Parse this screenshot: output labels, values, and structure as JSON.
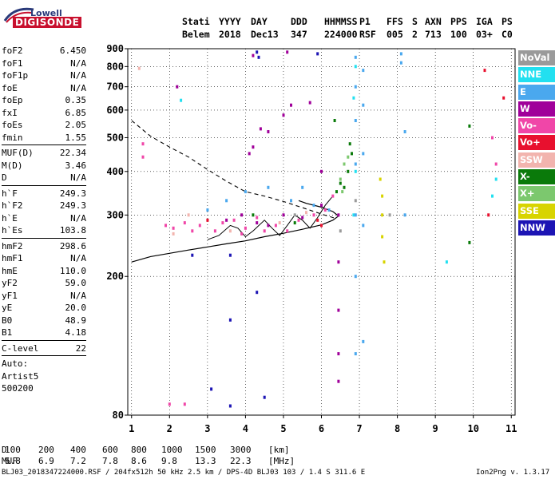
{
  "logo": {
    "line1": "Lowell",
    "line2": "DIGISONDE"
  },
  "header": {
    "row1": [
      "Stati",
      "YYYY",
      "DAY",
      "DDD",
      "HHMMSS",
      "P1",
      "FFS",
      "S",
      "AXN",
      "PPS",
      "IGA",
      "PS"
    ],
    "row2": [
      "Belem",
      "2018",
      "Dec13",
      "347",
      "224000",
      "RSF",
      "005",
      "2",
      "713",
      "100",
      "03+",
      "C0"
    ]
  },
  "params": [
    {
      "label": "foF2",
      "value": "6.450"
    },
    {
      "label": "foF1",
      "value": "N/A"
    },
    {
      "label": "foF1p",
      "value": "N/A"
    },
    {
      "label": "foE",
      "value": "N/A"
    },
    {
      "label": "foEp",
      "value": "0.35"
    },
    {
      "label": "fxI",
      "value": "6.85"
    },
    {
      "label": "foEs",
      "value": "2.05"
    },
    {
      "label": "fmin",
      "value": "1.55"
    },
    {
      "sep": true
    },
    {
      "label": "MUF(D)",
      "value": "22.34"
    },
    {
      "label": "M(D)",
      "value": "3.46"
    },
    {
      "label": "D",
      "value": "N/A"
    },
    {
      "sep": true
    },
    {
      "label": "h`F",
      "value": "249.3"
    },
    {
      "label": "h`F2",
      "value": "249.3"
    },
    {
      "label": "h`E",
      "value": "N/A"
    },
    {
      "label": "h`Es",
      "value": "103.8"
    },
    {
      "sep": true
    },
    {
      "label": "hmF2",
      "value": "298.6"
    },
    {
      "label": "hmF1",
      "value": "N/A"
    },
    {
      "label": "hmE",
      "value": "110.0"
    },
    {
      "label": "yF2",
      "value": "59.0"
    },
    {
      "label": "yF1",
      "value": "N/A"
    },
    {
      "label": "yE",
      "value": "20.0"
    },
    {
      "label": "B0",
      "value": "48.9"
    },
    {
      "label": "B1",
      "value": "4.18"
    },
    {
      "sep": true
    },
    {
      "label": "C-level",
      "value": "22"
    },
    {
      "sep": true
    }
  ],
  "auto": {
    "line1": "Auto:",
    "line2": "Artist5",
    "line3": "500200"
  },
  "legend": [
    {
      "label": "NoVal",
      "color": "#9a9a9a"
    },
    {
      "label": "NNE",
      "color": "#22e0f0"
    },
    {
      "label": "E",
      "color": "#4aa8ee"
    },
    {
      "label": "W",
      "color": "#a0009a"
    },
    {
      "label": "Vo-",
      "color": "#f046a8"
    },
    {
      "label": "Vo+",
      "color": "#e8102e"
    },
    {
      "label": "SSW",
      "color": "#f2b4ae"
    },
    {
      "label": "X-",
      "color": "#0a7a0a"
    },
    {
      "label": "X+",
      "color": "#7cc86e"
    },
    {
      "label": "SSE",
      "color": "#d8d400"
    },
    {
      "label": "NNW",
      "color": "#1c14b4"
    }
  ],
  "distance_table": {
    "d_label": "D",
    "d_values": [
      "100",
      "200",
      "400",
      "600",
      "800",
      "1000",
      "1500",
      "3000"
    ],
    "d_unit": "[km]",
    "muf_label": "MUF",
    "muf_values": [
      "6.8",
      "6.9",
      "7.2",
      "7.8",
      "8.6",
      "9.8",
      "13.3",
      "22.3"
    ],
    "muf_unit": "[MHz]"
  },
  "footer": {
    "left": "BLJ03_2018347224000.RSF / 204fx512h 50 kHz 2.5 km / DPS-4D BLJ03 103 / 1.4 S 311.6 E",
    "right": "Ion2Png v. 1.3.17"
  },
  "chart_data": {
    "type": "scatter",
    "x_ticks": [
      1,
      2,
      3,
      4,
      5,
      6,
      7,
      8,
      9,
      10,
      11
    ],
    "y_ticks": [
      80,
      200,
      300,
      400,
      500,
      600,
      700,
      800,
      900
    ],
    "xlim": [
      0.9,
      11.1
    ],
    "y_scale": "log",
    "ylim": [
      80,
      900
    ],
    "grid": "dotted",
    "legend_position": "right",
    "profile_curve": [
      [
        1.0,
        220
      ],
      [
        1.5,
        228
      ],
      [
        2.0,
        233
      ],
      [
        2.5,
        238
      ],
      [
        3.0,
        243
      ],
      [
        3.5,
        248
      ],
      [
        4.0,
        253
      ],
      [
        4.5,
        260
      ],
      [
        5.0,
        266
      ],
      [
        5.5,
        273
      ],
      [
        6.0,
        281
      ],
      [
        6.3,
        290
      ],
      [
        6.45,
        298
      ],
      [
        6.3,
        307
      ],
      [
        6.0,
        316
      ],
      [
        5.6,
        324
      ],
      [
        5.4,
        330
      ]
    ],
    "dashed_curve": [
      [
        1.0,
        560
      ],
      [
        1.5,
        505
      ],
      [
        2.0,
        470
      ],
      [
        2.5,
        440
      ],
      [
        3.0,
        405
      ],
      [
        3.5,
        375
      ],
      [
        4.0,
        350
      ],
      [
        4.5,
        340
      ],
      [
        5.0,
        328
      ],
      [
        5.5,
        315
      ],
      [
        6.0,
        302
      ],
      [
        6.35,
        294
      ]
    ],
    "trace_curve": [
      [
        3.0,
        255
      ],
      [
        3.3,
        262
      ],
      [
        3.6,
        280
      ],
      [
        3.8,
        275
      ],
      [
        4.0,
        260
      ],
      [
        4.2,
        270
      ],
      [
        4.5,
        290
      ],
      [
        4.7,
        275
      ],
      [
        4.9,
        262
      ],
      [
        5.1,
        280
      ],
      [
        5.3,
        300
      ],
      [
        5.5,
        290
      ],
      [
        5.7,
        275
      ],
      [
        5.9,
        295
      ],
      [
        6.1,
        320
      ],
      [
        6.3,
        340
      ]
    ],
    "series": [
      {
        "name": "NNE",
        "color": "#22e0f0",
        "points": [
          [
            6.85,
            300
          ],
          [
            6.9,
            400
          ],
          [
            6.85,
            650
          ],
          [
            6.9,
            800
          ],
          [
            10.5,
            340
          ],
          [
            10.6,
            380
          ],
          [
            2.3,
            640
          ],
          [
            9.3,
            220
          ]
        ]
      },
      {
        "name": "E",
        "color": "#4aa8ee",
        "points": [
          [
            4.0,
            350
          ],
          [
            4.6,
            360
          ],
          [
            5.2,
            330
          ],
          [
            5.8,
            320
          ],
          [
            6.2,
            310
          ],
          [
            6.9,
            120
          ],
          [
            6.9,
            200
          ],
          [
            6.9,
            300
          ],
          [
            6.9,
            420
          ],
          [
            6.9,
            560
          ],
          [
            6.9,
            700
          ],
          [
            6.9,
            850
          ],
          [
            7.1,
            130
          ],
          [
            7.1,
            280
          ],
          [
            7.1,
            450
          ],
          [
            7.1,
            620
          ],
          [
            7.1,
            780
          ],
          [
            8.1,
            820
          ],
          [
            8.1,
            870
          ],
          [
            8.2,
            520
          ],
          [
            8.2,
            300
          ],
          [
            3.0,
            310
          ],
          [
            3.5,
            330
          ],
          [
            5.5,
            360
          ]
        ]
      },
      {
        "name": "W",
        "color": "#a0009a",
        "points": [
          [
            3.5,
            290
          ],
          [
            3.9,
            300
          ],
          [
            4.3,
            285
          ],
          [
            4.6,
            280
          ],
          [
            5.0,
            300
          ],
          [
            5.5,
            295
          ],
          [
            6.0,
            320
          ],
          [
            6.45,
            300
          ],
          [
            6.45,
            220
          ],
          [
            6.45,
            160
          ],
          [
            6.45,
            120
          ],
          [
            6.45,
            100
          ],
          [
            4.1,
            450
          ],
          [
            4.2,
            470
          ],
          [
            4.4,
            530
          ],
          [
            4.6,
            520
          ],
          [
            5.0,
            580
          ],
          [
            5.2,
            620
          ],
          [
            5.7,
            630
          ],
          [
            6.0,
            400
          ],
          [
            2.2,
            700
          ],
          [
            4.2,
            860
          ],
          [
            5.1,
            880
          ]
        ]
      },
      {
        "name": "Vo-",
        "color": "#f046a8",
        "points": [
          [
            1.9,
            280
          ],
          [
            2.1,
            275
          ],
          [
            2.4,
            285
          ],
          [
            2.6,
            270
          ],
          [
            2.8,
            280
          ],
          [
            3.2,
            270
          ],
          [
            3.4,
            285
          ],
          [
            3.7,
            290
          ],
          [
            4.0,
            275
          ],
          [
            4.3,
            295
          ],
          [
            4.8,
            280
          ],
          [
            5.1,
            270
          ],
          [
            5.4,
            290
          ],
          [
            5.8,
            300
          ],
          [
            6.1,
            310
          ],
          [
            6.3,
            340
          ],
          [
            1.3,
            480
          ],
          [
            1.3,
            440
          ],
          [
            10.5,
            500
          ],
          [
            10.6,
            420
          ],
          [
            3.9,
            265
          ],
          [
            4.5,
            270
          ],
          [
            2.0,
            86
          ],
          [
            2.4,
            86
          ]
        ]
      },
      {
        "name": "Vo+",
        "color": "#e8102e",
        "points": [
          [
            10.3,
            780
          ],
          [
            10.8,
            650
          ],
          [
            10.4,
            300
          ],
          [
            3.0,
            290
          ],
          [
            5.9,
            290
          ],
          [
            6.0,
            280
          ]
        ]
      },
      {
        "name": "SSW",
        "color": "#f2b4ae",
        "points": [
          [
            2.1,
            265
          ],
          [
            3.6,
            270
          ],
          [
            4.9,
            285
          ],
          [
            5.6,
            305
          ],
          [
            1.2,
            790
          ],
          [
            2.5,
            300
          ]
        ]
      },
      {
        "name": "X-",
        "color": "#0a7a0a",
        "points": [
          [
            6.6,
            360
          ],
          [
            6.7,
            400
          ],
          [
            6.8,
            450
          ],
          [
            6.75,
            480
          ],
          [
            6.5,
            370
          ],
          [
            6.4,
            350
          ],
          [
            6.35,
            560
          ],
          [
            9.9,
            540
          ],
          [
            9.9,
            250
          ],
          [
            4.2,
            300
          ],
          [
            5.3,
            285
          ]
        ]
      },
      {
        "name": "X+",
        "color": "#7cc86e",
        "points": [
          [
            6.5,
            380
          ],
          [
            6.6,
            420
          ],
          [
            6.55,
            350
          ],
          [
            6.7,
            440
          ]
        ]
      },
      {
        "name": "SSE",
        "color": "#d8d400",
        "points": [
          [
            7.6,
            260
          ],
          [
            7.6,
            300
          ],
          [
            7.6,
            340
          ],
          [
            7.55,
            380
          ],
          [
            7.65,
            220
          ]
        ]
      },
      {
        "name": "NNW",
        "color": "#1c14b4",
        "points": [
          [
            4.3,
            880
          ],
          [
            4.35,
            850
          ],
          [
            5.9,
            870
          ],
          [
            3.6,
            230
          ],
          [
            3.6,
            150
          ],
          [
            4.3,
            180
          ],
          [
            3.1,
            95
          ],
          [
            3.6,
            85
          ],
          [
            4.5,
            90
          ],
          [
            2.6,
            230
          ]
        ]
      },
      {
        "name": "NoVal",
        "color": "#9a9a9a",
        "points": [
          [
            6.9,
            330
          ],
          [
            6.5,
            270
          ],
          [
            7.8,
            300
          ],
          [
            5.3,
            300
          ]
        ]
      }
    ]
  }
}
